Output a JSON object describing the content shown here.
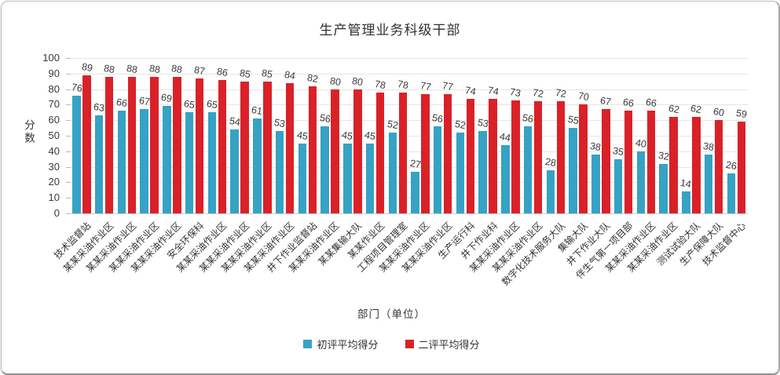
{
  "chart_data": {
    "type": "bar",
    "title": "生产管理业务科级干部",
    "xlabel": "部门（单位）",
    "ylabel": "分数",
    "ylim": [
      0,
      100
    ],
    "ytick_step": 10,
    "yticks": [
      0,
      10,
      20,
      30,
      40,
      50,
      60,
      70,
      80,
      90,
      100
    ],
    "grid": true,
    "legend_position": "bottom",
    "bar_value_labels": true,
    "categories": [
      "技术监督站",
      "某某采油作业区",
      "某某采油作业区",
      "某某采油作业区",
      "某某采油作业区",
      "安全环保科",
      "某某采油作业区",
      "某某采油作业区",
      "某某采油作业区",
      "某某采油作业区",
      "井下作业监督站",
      "某某采油作业区",
      "某某集输大队",
      "某某作业区",
      "工程项目管理室",
      "某某采油作业区",
      "某某采油作业区",
      "生产运行科",
      "井下作业科",
      "某某采油作业区",
      "某某采油作业区",
      "数字化技术服务大队",
      "集输大队",
      "井下作业大队",
      "伴生气第一项目部",
      "某某采油作业区",
      "某某采油作业区",
      "测试试验大队",
      "生产保障大队",
      "技术监督中心"
    ],
    "series": [
      {
        "name": "初评平均得分",
        "color": "#36A2C4",
        "values": [
          76,
          63,
          66,
          67,
          69,
          65,
          65,
          54,
          61,
          53,
          45,
          56,
          45,
          45,
          52,
          27,
          56,
          52,
          53,
          44,
          56,
          28,
          55,
          38,
          35,
          40,
          32,
          14,
          38,
          26
        ]
      },
      {
        "name": "二评平均得分",
        "color": "#DA2128",
        "values": [
          89,
          88,
          88,
          88,
          88,
          87,
          86,
          85,
          85,
          84,
          82,
          80,
          80,
          78,
          78,
          77,
          77,
          74,
          74,
          73,
          72,
          72,
          70,
          67,
          66,
          66,
          62,
          62,
          60,
          59
        ]
      }
    ]
  },
  "colors": {
    "grid": "#e5e5e5",
    "axis": "#cfcfcf",
    "text": "#3a3a3a"
  }
}
